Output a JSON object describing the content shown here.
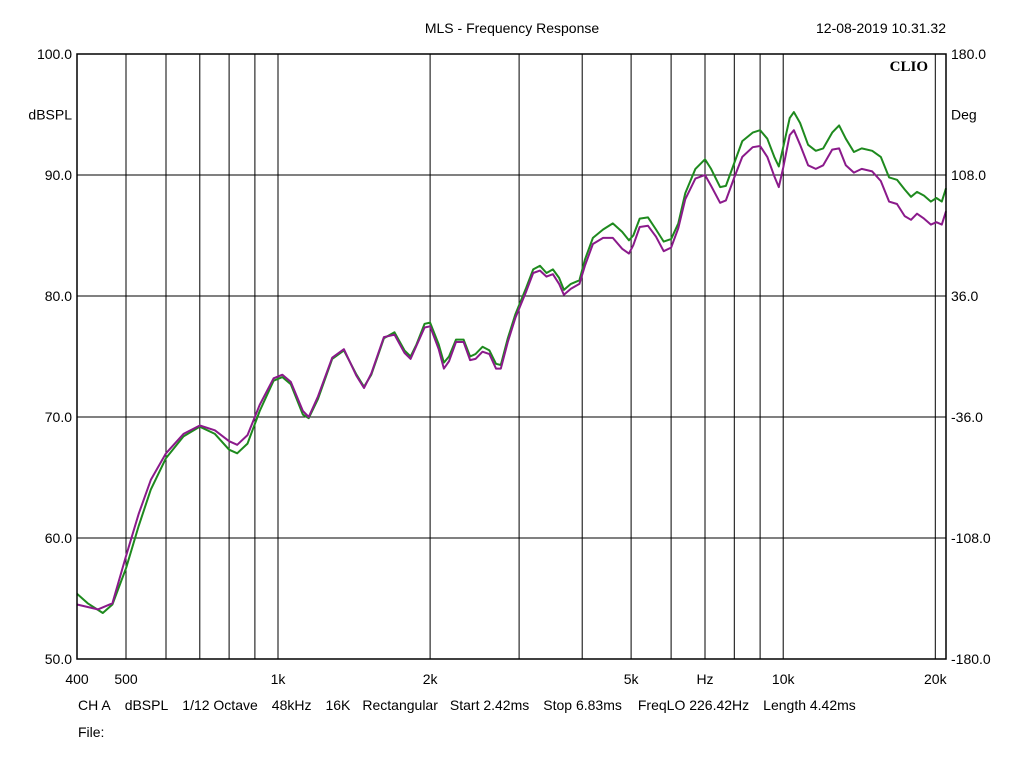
{
  "header": {
    "title": "MLS - Frequency Response",
    "datetime": "12-08-2019 10.31.32",
    "logo": "CLIO"
  },
  "footer": {
    "line1": [
      "CH A",
      "dBSPL",
      "1/12 Octave",
      "48kHz",
      "16K",
      "Rectangular",
      "Start 2.42ms",
      "Stop 6.83ms",
      "FreqLO 226.42Hz",
      "Length 4.42ms"
    ],
    "line2": "File:"
  },
  "chart_data": {
    "type": "line",
    "title": "MLS - Frequency Response",
    "x_scale": "log",
    "xlim": [
      400,
      21000
    ],
    "ylim": [
      50,
      100
    ],
    "y2lim": [
      -180,
      180
    ],
    "ylabel": "dBSPL",
    "y2label": "Deg",
    "xunit": "Hz",
    "grid": true,
    "x_ticks": [
      {
        "value": 400,
        "label": "400"
      },
      {
        "value": 500,
        "label": "500"
      },
      {
        "value": 1000,
        "label": "1k"
      },
      {
        "value": 2000,
        "label": "2k"
      },
      {
        "value": 5000,
        "label": "5k"
      },
      {
        "value": 10000,
        "label": "10k"
      },
      {
        "value": 20000,
        "label": "20k"
      }
    ],
    "x_unit_tick": 7000,
    "x_gridlines": [
      500,
      600,
      700,
      800,
      900,
      1000,
      2000,
      3000,
      4000,
      5000,
      6000,
      7000,
      8000,
      9000,
      10000,
      20000
    ],
    "y_ticks": [
      {
        "value": 100,
        "label": "100.0"
      },
      {
        "value": 90,
        "label": "90.0"
      },
      {
        "value": 80,
        "label": "80.0"
      },
      {
        "value": 70,
        "label": "70.0"
      },
      {
        "value": 60,
        "label": "60.0"
      },
      {
        "value": 50,
        "label": "50.0"
      }
    ],
    "y2_ticks": [
      "180.0",
      "108.0",
      "36.0",
      "-36.0",
      "-108.0",
      "-180.0"
    ],
    "series": [
      {
        "color": "#1e8a1e",
        "points": [
          [
            400,
            55.4
          ],
          [
            420,
            54.6
          ],
          [
            450,
            53.8
          ],
          [
            470,
            54.5
          ],
          [
            500,
            57.5
          ],
          [
            530,
            61
          ],
          [
            560,
            64
          ],
          [
            600,
            66.6
          ],
          [
            650,
            68.4
          ],
          [
            700,
            69.2
          ],
          [
            750,
            68.6
          ],
          [
            800,
            67.3
          ],
          [
            830,
            67
          ],
          [
            870,
            67.8
          ],
          [
            920,
            70.5
          ],
          [
            980,
            73
          ],
          [
            1020,
            73.3
          ],
          [
            1060,
            72.7
          ],
          [
            1120,
            70.2
          ],
          [
            1150,
            69.9
          ],
          [
            1200,
            71.5
          ],
          [
            1280,
            74.8
          ],
          [
            1350,
            75.5
          ],
          [
            1430,
            73.5
          ],
          [
            1480,
            72.5
          ],
          [
            1530,
            73.5
          ],
          [
            1620,
            76.5
          ],
          [
            1700,
            77
          ],
          [
            1780,
            75.5
          ],
          [
            1830,
            75
          ],
          [
            1880,
            76
          ],
          [
            1950,
            77.7
          ],
          [
            2000,
            77.8
          ],
          [
            2080,
            76
          ],
          [
            2130,
            74.5
          ],
          [
            2180,
            75
          ],
          [
            2250,
            76.4
          ],
          [
            2330,
            76.4
          ],
          [
            2400,
            75
          ],
          [
            2460,
            75.2
          ],
          [
            2540,
            75.8
          ],
          [
            2620,
            75.5
          ],
          [
            2700,
            74.4
          ],
          [
            2760,
            74.3
          ],
          [
            2850,
            76.5
          ],
          [
            2950,
            78.5
          ],
          [
            3100,
            80.7
          ],
          [
            3200,
            82.2
          ],
          [
            3300,
            82.5
          ],
          [
            3400,
            81.9
          ],
          [
            3500,
            82.2
          ],
          [
            3600,
            81.5
          ],
          [
            3680,
            80.5
          ],
          [
            3800,
            81
          ],
          [
            3950,
            81.3
          ],
          [
            4050,
            83
          ],
          [
            4200,
            84.8
          ],
          [
            4400,
            85.5
          ],
          [
            4600,
            86
          ],
          [
            4800,
            85.3
          ],
          [
            4950,
            84.6
          ],
          [
            5050,
            85
          ],
          [
            5200,
            86.4
          ],
          [
            5400,
            86.5
          ],
          [
            5600,
            85.5
          ],
          [
            5800,
            84.5
          ],
          [
            6000,
            84.7
          ],
          [
            6200,
            86
          ],
          [
            6400,
            88.5
          ],
          [
            6700,
            90.5
          ],
          [
            7000,
            91.3
          ],
          [
            7200,
            90.5
          ],
          [
            7500,
            89
          ],
          [
            7700,
            89.1
          ],
          [
            8000,
            91
          ],
          [
            8300,
            92.8
          ],
          [
            8700,
            93.5
          ],
          [
            9000,
            93.7
          ],
          [
            9300,
            93
          ],
          [
            9600,
            91.5
          ],
          [
            9800,
            90.7
          ],
          [
            10000,
            92.3
          ],
          [
            10300,
            94.7
          ],
          [
            10500,
            95.2
          ],
          [
            10800,
            94.3
          ],
          [
            11200,
            92.5
          ],
          [
            11600,
            92
          ],
          [
            12000,
            92.2
          ],
          [
            12500,
            93.5
          ],
          [
            12900,
            94.1
          ],
          [
            13300,
            93
          ],
          [
            13800,
            91.9
          ],
          [
            14300,
            92.2
          ],
          [
            15000,
            92
          ],
          [
            15600,
            91.5
          ],
          [
            16200,
            89.8
          ],
          [
            16800,
            89.6
          ],
          [
            17400,
            88.8
          ],
          [
            17900,
            88.2
          ],
          [
            18400,
            88.6
          ],
          [
            19000,
            88.3
          ],
          [
            19600,
            87.8
          ],
          [
            20100,
            88.1
          ],
          [
            20600,
            87.8
          ],
          [
            21000,
            88.9
          ]
        ]
      },
      {
        "color": "#8b1a8b",
        "points": [
          [
            400,
            54.5
          ],
          [
            440,
            54.1
          ],
          [
            470,
            54.6
          ],
          [
            500,
            58.5
          ],
          [
            530,
            62
          ],
          [
            560,
            64.8
          ],
          [
            600,
            67
          ],
          [
            650,
            68.6
          ],
          [
            700,
            69.3
          ],
          [
            750,
            68.9
          ],
          [
            800,
            68
          ],
          [
            830,
            67.7
          ],
          [
            870,
            68.5
          ],
          [
            920,
            71
          ],
          [
            980,
            73.2
          ],
          [
            1020,
            73.5
          ],
          [
            1060,
            72.9
          ],
          [
            1120,
            70.5
          ],
          [
            1150,
            70
          ],
          [
            1200,
            71.7
          ],
          [
            1280,
            74.9
          ],
          [
            1350,
            75.6
          ],
          [
            1430,
            73.4
          ],
          [
            1480,
            72.4
          ],
          [
            1530,
            73.6
          ],
          [
            1620,
            76.6
          ],
          [
            1700,
            76.8
          ],
          [
            1780,
            75.3
          ],
          [
            1830,
            74.8
          ],
          [
            1880,
            75.9
          ],
          [
            1950,
            77.4
          ],
          [
            2000,
            77.5
          ],
          [
            2080,
            75.6
          ],
          [
            2130,
            74
          ],
          [
            2180,
            74.6
          ],
          [
            2250,
            76.2
          ],
          [
            2330,
            76.2
          ],
          [
            2400,
            74.7
          ],
          [
            2460,
            74.8
          ],
          [
            2540,
            75.4
          ],
          [
            2620,
            75.2
          ],
          [
            2700,
            74
          ],
          [
            2760,
            74
          ],
          [
            2850,
            76.2
          ],
          [
            2950,
            78.2
          ],
          [
            3100,
            80.4
          ],
          [
            3200,
            81.9
          ],
          [
            3300,
            82.1
          ],
          [
            3400,
            81.6
          ],
          [
            3500,
            81.8
          ],
          [
            3600,
            81
          ],
          [
            3680,
            80.1
          ],
          [
            3800,
            80.6
          ],
          [
            3950,
            81
          ],
          [
            4050,
            82.5
          ],
          [
            4200,
            84.3
          ],
          [
            4400,
            84.8
          ],
          [
            4600,
            84.8
          ],
          [
            4800,
            83.9
          ],
          [
            4950,
            83.5
          ],
          [
            5050,
            84.2
          ],
          [
            5200,
            85.7
          ],
          [
            5400,
            85.8
          ],
          [
            5600,
            84.9
          ],
          [
            5800,
            83.7
          ],
          [
            6000,
            84
          ],
          [
            6200,
            85.6
          ],
          [
            6400,
            88
          ],
          [
            6700,
            89.7
          ],
          [
            7000,
            90
          ],
          [
            7200,
            89.1
          ],
          [
            7500,
            87.7
          ],
          [
            7700,
            87.9
          ],
          [
            8000,
            89.8
          ],
          [
            8300,
            91.5
          ],
          [
            8700,
            92.3
          ],
          [
            9000,
            92.4
          ],
          [
            9300,
            91.5
          ],
          [
            9600,
            89.9
          ],
          [
            9800,
            89
          ],
          [
            10000,
            90.6
          ],
          [
            10300,
            93.3
          ],
          [
            10500,
            93.7
          ],
          [
            10800,
            92.5
          ],
          [
            11200,
            90.8
          ],
          [
            11600,
            90.5
          ],
          [
            12000,
            90.8
          ],
          [
            12500,
            92.1
          ],
          [
            12900,
            92.2
          ],
          [
            13300,
            90.8
          ],
          [
            13800,
            90.2
          ],
          [
            14300,
            90.5
          ],
          [
            15000,
            90.3
          ],
          [
            15600,
            89.5
          ],
          [
            16200,
            87.8
          ],
          [
            16800,
            87.6
          ],
          [
            17400,
            86.6
          ],
          [
            17900,
            86.3
          ],
          [
            18400,
            86.8
          ],
          [
            19000,
            86.4
          ],
          [
            19600,
            85.9
          ],
          [
            20100,
            86.1
          ],
          [
            20600,
            85.9
          ],
          [
            21000,
            87
          ]
        ]
      }
    ]
  }
}
